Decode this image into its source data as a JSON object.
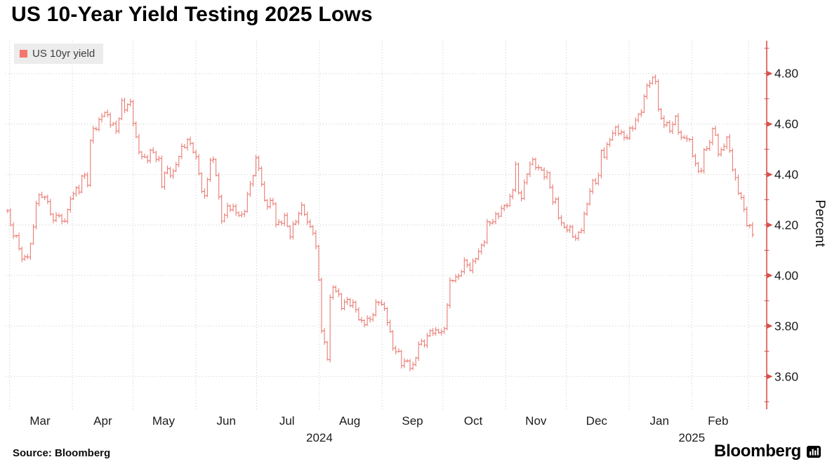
{
  "header": {
    "title": "US 10-Year Yield Testing 2025 Lows"
  },
  "legend": {
    "label": "US 10yr yield",
    "swatch_color": "#f3756d"
  },
  "footer": {
    "source": "Source:  Bloomberg",
    "brand_text": "Bloomberg",
    "brand_icon": "bloomberg-bars-icon"
  },
  "chart_data": {
    "type": "bar",
    "subtype": "ohlc-daily-bars",
    "title": "US 10-Year Yield Testing 2025 Lows",
    "series_name": "US 10yr yield",
    "xlabel": "",
    "ylabel": "Percent",
    "ylim": [
      3.47,
      4.93
    ],
    "yticks": [
      3.6,
      3.8,
      4.0,
      4.2,
      4.4,
      4.6,
      4.8
    ],
    "ytick_minor": [
      3.5,
      3.7,
      3.9,
      4.1,
      4.3,
      4.5,
      4.7,
      4.9
    ],
    "grid": true,
    "legend_position": "top-left",
    "x_domain": [
      "2024-02-28",
      "2025-03-10"
    ],
    "month_gridlines": [
      "2024-03-01",
      "2024-04-01",
      "2024-05-01",
      "2024-06-01",
      "2024-07-01",
      "2024-08-01",
      "2024-09-01",
      "2024-10-01",
      "2024-11-01",
      "2024-12-01",
      "2025-01-01",
      "2025-02-01",
      "2025-03-01"
    ],
    "month_labels": [
      {
        "label": "Mar",
        "date": "2024-03-16"
      },
      {
        "label": "Apr",
        "date": "2024-04-16"
      },
      {
        "label": "May",
        "date": "2024-05-16"
      },
      {
        "label": "Jun",
        "date": "2024-06-16"
      },
      {
        "label": "Jul",
        "date": "2024-07-16"
      },
      {
        "label": "Aug",
        "date": "2024-08-16"
      },
      {
        "label": "Sep",
        "date": "2024-09-16"
      },
      {
        "label": "Oct",
        "date": "2024-10-16"
      },
      {
        "label": "Nov",
        "date": "2024-11-16"
      },
      {
        "label": "Dec",
        "date": "2024-12-16"
      },
      {
        "label": "Jan",
        "date": "2025-01-16"
      },
      {
        "label": "Feb",
        "date": "2025-02-14"
      }
    ],
    "year_labels": [
      {
        "label": "2024",
        "date": "2024-08-01"
      },
      {
        "label": "2025",
        "date": "2025-02-01"
      }
    ],
    "colors": {
      "bar": "#e25d52",
      "axis": "#d8514c",
      "grid": "#c9c9c9",
      "text": "#1c1c1c"
    },
    "bar_count": 262,
    "noise_amp": 0.013,
    "wick_amp": 0.012,
    "keypoints": [
      [
        "2024-02-29",
        4.25
      ],
      [
        "2024-03-01",
        4.19
      ],
      [
        "2024-03-05",
        4.14
      ],
      [
        "2024-03-06",
        4.1
      ],
      [
        "2024-03-08",
        4.06
      ],
      [
        "2024-03-11",
        4.1
      ],
      [
        "2024-03-12",
        4.16
      ],
      [
        "2024-03-13",
        4.19
      ],
      [
        "2024-03-14",
        4.29
      ],
      [
        "2024-03-18",
        4.33
      ],
      [
        "2024-03-19",
        4.3
      ],
      [
        "2024-03-21",
        4.27
      ],
      [
        "2024-03-22",
        4.2
      ],
      [
        "2024-03-25",
        4.25
      ],
      [
        "2024-03-27",
        4.19
      ],
      [
        "2024-04-01",
        4.33
      ],
      [
        "2024-04-02",
        4.36
      ],
      [
        "2024-04-04",
        4.31
      ],
      [
        "2024-04-05",
        4.4
      ],
      [
        "2024-04-09",
        4.36
      ],
      [
        "2024-04-10",
        4.55
      ],
      [
        "2024-04-11",
        4.58
      ],
      [
        "2024-04-15",
        4.62
      ],
      [
        "2024-04-16",
        4.66
      ],
      [
        "2024-04-19",
        4.61
      ],
      [
        "2024-04-23",
        4.57
      ],
      [
        "2024-04-25",
        4.7
      ],
      [
        "2024-04-26",
        4.67
      ],
      [
        "2024-04-30",
        4.68
      ],
      [
        "2024-05-01",
        4.61
      ],
      [
        "2024-05-03",
        4.5
      ],
      [
        "2024-05-07",
        4.46
      ],
      [
        "2024-05-10",
        4.5
      ],
      [
        "2024-05-14",
        4.44
      ],
      [
        "2024-05-15",
        4.35
      ],
      [
        "2024-05-17",
        4.42
      ],
      [
        "2024-05-21",
        4.41
      ],
      [
        "2024-05-23",
        4.47
      ],
      [
        "2024-05-28",
        4.53
      ],
      [
        "2024-05-31",
        4.5
      ],
      [
        "2024-06-03",
        4.4
      ],
      [
        "2024-06-04",
        4.33
      ],
      [
        "2024-06-06",
        4.29
      ],
      [
        "2024-06-07",
        4.43
      ],
      [
        "2024-06-10",
        4.46
      ],
      [
        "2024-06-11",
        4.4
      ],
      [
        "2024-06-12",
        4.32
      ],
      [
        "2024-06-14",
        4.22
      ],
      [
        "2024-06-17",
        4.28
      ],
      [
        "2024-06-20",
        4.25
      ],
      [
        "2024-06-24",
        4.23
      ],
      [
        "2024-06-26",
        4.31
      ],
      [
        "2024-06-28",
        4.37
      ],
      [
        "2024-07-01",
        4.46
      ],
      [
        "2024-07-02",
        4.43
      ],
      [
        "2024-07-05",
        4.28
      ],
      [
        "2024-07-09",
        4.3
      ],
      [
        "2024-07-11",
        4.19
      ],
      [
        "2024-07-15",
        4.23
      ],
      [
        "2024-07-17",
        4.15
      ],
      [
        "2024-07-22",
        4.26
      ],
      [
        "2024-07-24",
        4.28
      ],
      [
        "2024-07-26",
        4.2
      ],
      [
        "2024-07-29",
        4.17
      ],
      [
        "2024-07-30",
        4.12
      ],
      [
        "2024-07-31",
        4.05
      ],
      [
        "2024-08-01",
        3.97
      ],
      [
        "2024-08-02",
        3.79
      ],
      [
        "2024-08-05",
        3.68
      ],
      [
        "2024-08-06",
        3.89
      ],
      [
        "2024-08-08",
        3.96
      ],
      [
        "2024-08-12",
        3.88
      ],
      [
        "2024-08-15",
        3.91
      ],
      [
        "2024-08-19",
        3.87
      ],
      [
        "2024-08-21",
        3.8
      ],
      [
        "2024-08-26",
        3.83
      ],
      [
        "2024-08-30",
        3.91
      ],
      [
        "2024-09-03",
        3.84
      ],
      [
        "2024-09-06",
        3.72
      ],
      [
        "2024-09-09",
        3.7
      ],
      [
        "2024-09-11",
        3.65
      ],
      [
        "2024-09-13",
        3.66
      ],
      [
        "2024-09-16",
        3.62
      ],
      [
        "2024-09-19",
        3.73
      ],
      [
        "2024-09-23",
        3.75
      ],
      [
        "2024-09-25",
        3.79
      ],
      [
        "2024-09-27",
        3.76
      ],
      [
        "2024-09-30",
        3.79
      ],
      [
        "2024-10-01",
        3.73
      ],
      [
        "2024-10-04",
        3.97
      ],
      [
        "2024-10-07",
        4.0
      ],
      [
        "2024-10-09",
        3.98
      ],
      [
        "2024-10-11",
        4.05
      ],
      [
        "2024-10-15",
        4.03
      ],
      [
        "2024-10-17",
        4.08
      ],
      [
        "2024-10-21",
        4.12
      ],
      [
        "2024-10-23",
        4.2
      ],
      [
        "2024-10-25",
        4.21
      ],
      [
        "2024-10-29",
        4.26
      ],
      [
        "2024-11-01",
        4.28
      ],
      [
        "2024-11-04",
        4.3
      ],
      [
        "2024-11-06",
        4.44
      ],
      [
        "2024-11-07",
        4.33
      ],
      [
        "2024-11-08",
        4.3
      ],
      [
        "2024-11-12",
        4.42
      ],
      [
        "2024-11-13",
        4.45
      ],
      [
        "2024-11-15",
        4.44
      ],
      [
        "2024-11-18",
        4.41
      ],
      [
        "2024-11-22",
        4.4
      ],
      [
        "2024-11-25",
        4.27
      ],
      [
        "2024-11-26",
        4.3
      ],
      [
        "2024-11-27",
        4.24
      ],
      [
        "2024-11-29",
        4.18
      ],
      [
        "2024-12-02",
        4.19
      ],
      [
        "2024-12-06",
        4.15
      ],
      [
        "2024-12-09",
        4.2
      ],
      [
        "2024-12-11",
        4.27
      ],
      [
        "2024-12-13",
        4.35
      ],
      [
        "2024-12-17",
        4.4
      ],
      [
        "2024-12-18",
        4.5
      ],
      [
        "2024-12-20",
        4.48
      ],
      [
        "2024-12-23",
        4.55
      ],
      [
        "2024-12-26",
        4.58
      ],
      [
        "2024-12-30",
        4.55
      ],
      [
        "2025-01-02",
        4.58
      ],
      [
        "2025-01-06",
        4.63
      ],
      [
        "2025-01-08",
        4.68
      ],
      [
        "2025-01-10",
        4.77
      ],
      [
        "2025-01-13",
        4.78
      ],
      [
        "2025-01-14",
        4.79
      ],
      [
        "2025-01-15",
        4.66
      ],
      [
        "2025-01-17",
        4.61
      ],
      [
        "2025-01-21",
        4.58
      ],
      [
        "2025-01-24",
        4.63
      ],
      [
        "2025-01-27",
        4.53
      ],
      [
        "2025-01-29",
        4.55
      ],
      [
        "2025-01-31",
        4.52
      ],
      [
        "2025-02-04",
        4.41
      ],
      [
        "2025-02-06",
        4.44
      ],
      [
        "2025-02-07",
        4.49
      ],
      [
        "2025-02-11",
        4.54
      ],
      [
        "2025-02-12",
        4.63
      ],
      [
        "2025-02-13",
        4.53
      ],
      [
        "2025-02-14",
        4.47
      ],
      [
        "2025-02-18",
        4.55
      ],
      [
        "2025-02-20",
        4.5
      ],
      [
        "2025-02-21",
        4.42
      ],
      [
        "2025-02-25",
        4.3
      ],
      [
        "2025-02-27",
        4.26
      ],
      [
        "2025-02-28",
        4.21
      ],
      [
        "2025-03-03",
        4.18
      ]
    ]
  }
}
